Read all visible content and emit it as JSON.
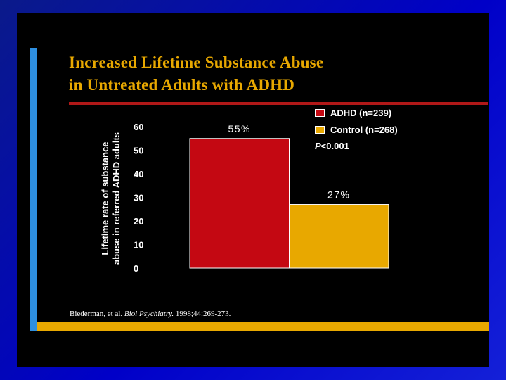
{
  "slide": {
    "title_line1": "Increased Lifetime Substance Abuse",
    "title_line2": "in Untreated Adults with ADHD",
    "ylabel_line1": "Lifetime rate of substance",
    "ylabel_line2": "abuse in referred ADHD adults",
    "pvalue_symbol": "P",
    "pvalue_rest": "<0.001",
    "citation_authors": "Biederman, et al.",
    "citation_journal": "Biol Psychiatry.",
    "citation_ref": "1998;44:269-273."
  },
  "colors": {
    "background": "#0000c8",
    "slide": "#000000",
    "title": "#e8a800",
    "accent_bar": "#2e8fe0",
    "bottom_bar": "#e8a800",
    "rule": "#b01818"
  },
  "chart_data": {
    "type": "bar",
    "categories": [
      "ADHD (n=239)",
      "Control (n=268)"
    ],
    "values": [
      55,
      27
    ],
    "data_labels": [
      "55%",
      "27%"
    ],
    "colors": [
      "#c40812",
      "#e8a800"
    ],
    "legend": [
      "ADHD (n=239)",
      "Control (n=268)"
    ],
    "legend_position": "top-right",
    "ylim": [
      0,
      60
    ],
    "yticks": [
      0,
      10,
      20,
      30,
      40,
      50,
      60
    ],
    "ytick_labels": [
      "0",
      "10",
      "20",
      "30",
      "40",
      "50",
      "60"
    ],
    "ylabel": "Lifetime rate of substance abuse in referred ADHD adults",
    "xlabel": "",
    "title": "Increased Lifetime Substance Abuse in Untreated Adults with ADHD",
    "grid": false
  }
}
